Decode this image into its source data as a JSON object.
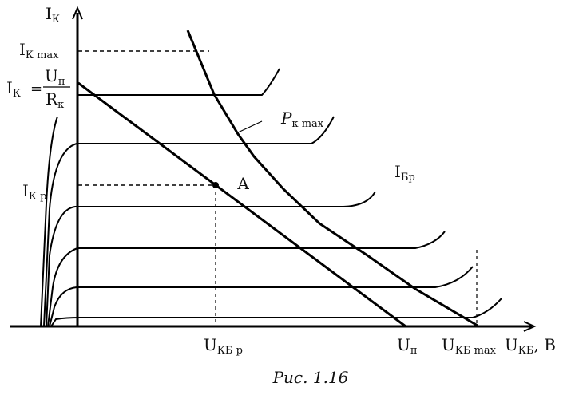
{
  "figure": {
    "caption": "Рис. 1.16",
    "axes": {
      "y_label_main": "I",
      "y_label_sub": "К",
      "x_label_main": "U",
      "x_label_sub": "КБ",
      "x_unit": ", В"
    },
    "labels": {
      "ik_max_main": "I",
      "ik_max_sub": "К max",
      "ik_eq_main": "I",
      "ik_eq_sub": "К",
      "ik_eq_sign": "=",
      "frac_num_main": "U",
      "frac_num_sub": "п",
      "frac_den_main": "R",
      "frac_den_sub": "к",
      "ikp_main": "I",
      "ikp_sub": "К р",
      "pk_max_main": "P",
      "pk_max_sub": "к  max",
      "ibp_main": "I",
      "ibp_sub": "Бр",
      "point_a": "А",
      "ukbp_main": "U",
      "ukbp_sub": "КБ р",
      "up_main": "U",
      "up_sub": "п",
      "ukbmax_main": "U",
      "ukbmax_sub": "КБ max"
    }
  }
}
